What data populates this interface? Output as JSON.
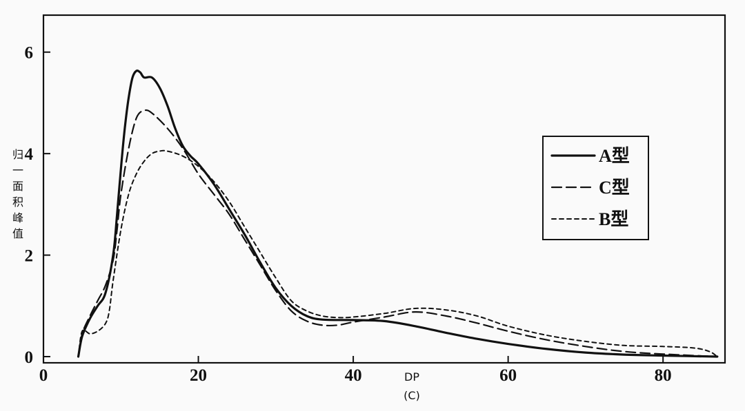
{
  "chart_data": {
    "type": "line",
    "title": "",
    "xlabel": "DP",
    "caption": "(C)",
    "ylabel": "归一面积峰值",
    "xlim": [
      0,
      88
    ],
    "ylim": [
      0,
      7
    ],
    "x_ticks": [
      0,
      20,
      40,
      60,
      80
    ],
    "y_ticks": [
      0,
      2,
      4,
      6
    ],
    "legend_position": "right",
    "grid": false,
    "series": [
      {
        "name": "A型",
        "style": "solid",
        "points": [
          [
            4.5,
            0.0
          ],
          [
            5.0,
            0.4
          ],
          [
            6.0,
            0.75
          ],
          [
            7.0,
            1.0
          ],
          [
            8.0,
            1.25
          ],
          [
            9.0,
            2.0
          ],
          [
            9.5,
            2.8
          ],
          [
            10.0,
            3.7
          ],
          [
            10.5,
            4.5
          ],
          [
            11.0,
            5.1
          ],
          [
            11.5,
            5.5
          ],
          [
            12.0,
            5.63
          ],
          [
            12.5,
            5.6
          ],
          [
            13.0,
            5.5
          ],
          [
            14.0,
            5.5
          ],
          [
            15.0,
            5.3
          ],
          [
            16.0,
            4.95
          ],
          [
            17.0,
            4.5
          ],
          [
            18.0,
            4.15
          ],
          [
            19.0,
            3.95
          ],
          [
            20.0,
            3.8
          ],
          [
            22.0,
            3.4
          ],
          [
            24.0,
            2.9
          ],
          [
            26.0,
            2.4
          ],
          [
            28.0,
            1.85
          ],
          [
            30.0,
            1.35
          ],
          [
            32.0,
            1.0
          ],
          [
            34.0,
            0.8
          ],
          [
            36.0,
            0.73
          ],
          [
            40.0,
            0.72
          ],
          [
            44.0,
            0.7
          ],
          [
            48.0,
            0.6
          ],
          [
            52.0,
            0.47
          ],
          [
            56.0,
            0.35
          ],
          [
            60.0,
            0.25
          ],
          [
            65.0,
            0.15
          ],
          [
            70.0,
            0.08
          ],
          [
            75.0,
            0.04
          ],
          [
            80.0,
            0.02
          ],
          [
            87.0,
            0.0
          ]
        ]
      },
      {
        "name": "C型",
        "style": "dashed",
        "points": [
          [
            4.5,
            0.0
          ],
          [
            5.0,
            0.45
          ],
          [
            6.0,
            0.8
          ],
          [
            7.0,
            1.1
          ],
          [
            8.0,
            1.4
          ],
          [
            9.0,
            1.9
          ],
          [
            9.5,
            2.5
          ],
          [
            10.0,
            3.2
          ],
          [
            11.0,
            4.1
          ],
          [
            12.0,
            4.7
          ],
          [
            13.0,
            4.85
          ],
          [
            14.0,
            4.8
          ],
          [
            16.0,
            4.5
          ],
          [
            18.0,
            4.1
          ],
          [
            20.0,
            3.6
          ],
          [
            22.0,
            3.2
          ],
          [
            24.0,
            2.8
          ],
          [
            26.0,
            2.3
          ],
          [
            28.0,
            1.8
          ],
          [
            30.0,
            1.3
          ],
          [
            32.0,
            0.9
          ],
          [
            34.0,
            0.7
          ],
          [
            36.0,
            0.62
          ],
          [
            38.0,
            0.62
          ],
          [
            40.0,
            0.68
          ],
          [
            44.0,
            0.78
          ],
          [
            48.0,
            0.88
          ],
          [
            52.0,
            0.8
          ],
          [
            56.0,
            0.66
          ],
          [
            60.0,
            0.5
          ],
          [
            65.0,
            0.33
          ],
          [
            70.0,
            0.2
          ],
          [
            75.0,
            0.1
          ],
          [
            80.0,
            0.05
          ],
          [
            87.0,
            0.0
          ]
        ]
      },
      {
        "name": "B型",
        "style": "dotted",
        "points": [
          [
            4.5,
            0.0
          ],
          [
            5.0,
            0.5
          ],
          [
            6.0,
            0.45
          ],
          [
            7.0,
            0.5
          ],
          [
            8.0,
            0.65
          ],
          [
            8.5,
            0.9
          ],
          [
            9.0,
            1.5
          ],
          [
            10.0,
            2.5
          ],
          [
            11.0,
            3.2
          ],
          [
            12.0,
            3.6
          ],
          [
            13.0,
            3.85
          ],
          [
            14.0,
            4.0
          ],
          [
            15.0,
            4.05
          ],
          [
            16.0,
            4.05
          ],
          [
            18.0,
            3.95
          ],
          [
            20.0,
            3.75
          ],
          [
            22.0,
            3.45
          ],
          [
            24.0,
            3.05
          ],
          [
            26.0,
            2.55
          ],
          [
            28.0,
            2.05
          ],
          [
            30.0,
            1.55
          ],
          [
            32.0,
            1.1
          ],
          [
            34.0,
            0.9
          ],
          [
            36.0,
            0.8
          ],
          [
            38.0,
            0.77
          ],
          [
            40.0,
            0.78
          ],
          [
            44.0,
            0.85
          ],
          [
            48.0,
            0.95
          ],
          [
            52.0,
            0.92
          ],
          [
            56.0,
            0.8
          ],
          [
            60.0,
            0.6
          ],
          [
            65.0,
            0.42
          ],
          [
            70.0,
            0.3
          ],
          [
            75.0,
            0.22
          ],
          [
            80.0,
            0.2
          ],
          [
            84.0,
            0.17
          ],
          [
            86.0,
            0.1
          ],
          [
            87.0,
            0.0
          ]
        ]
      }
    ]
  }
}
